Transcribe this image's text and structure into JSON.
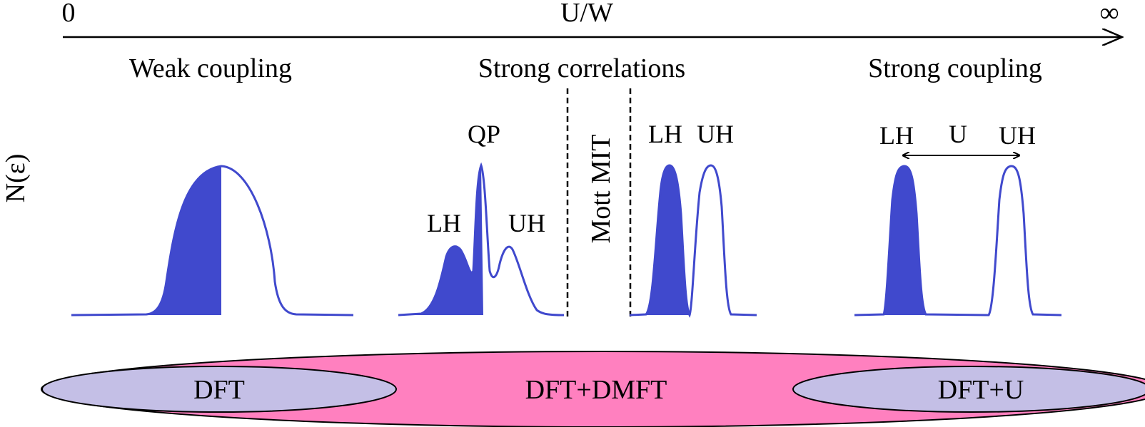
{
  "axis": {
    "start_label": "0",
    "title": "U/W",
    "end_label": "∞"
  },
  "y_label": "N(ε)",
  "regimes": {
    "weak": "Weak coupling",
    "strong_correlations": "Strong correlations",
    "strong": "Strong coupling"
  },
  "transition": {
    "label": "Mott MIT"
  },
  "peaks": {
    "qp": "QP",
    "lh_1": "LH",
    "uh_1": "UH",
    "lh_2": "LH",
    "uh_2": "UH",
    "lh_3": "LH",
    "uh_3": "UH",
    "gap": "U"
  },
  "methods": {
    "outer": "DFT+DMFT",
    "left": "DFT",
    "right": "DFT+U"
  },
  "colors": {
    "curve": "#4049cd",
    "fill": "#4049cd",
    "outer_ellipse": "#ff80bf",
    "inner_ellipse": "#c4bfe6"
  }
}
